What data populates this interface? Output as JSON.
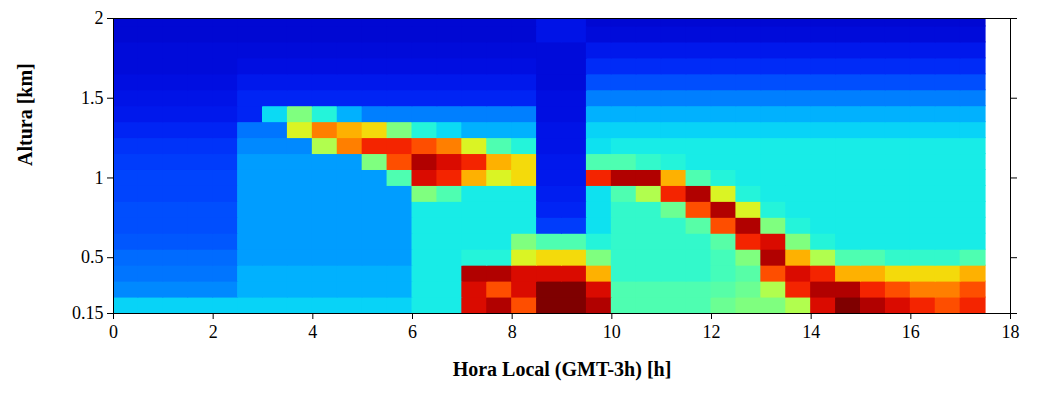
{
  "chart_data": {
    "type": "heatmap",
    "x_label": "Hora Local (GMT-3h) [h]",
    "y_label": "Altura [km]",
    "xlim": [
      0,
      18
    ],
    "xticks": [
      0,
      2,
      4,
      6,
      8,
      10,
      12,
      14,
      16,
      18
    ],
    "ylim": [
      0.15,
      2
    ],
    "yticks": [
      0.15,
      0.5,
      1,
      1.5,
      2
    ],
    "color": "jet",
    "zlim": [
      0,
      10
    ],
    "x_edges": [
      0,
      0.5,
      1,
      1.5,
      2,
      2.5,
      3,
      3.5,
      4,
      4.5,
      5,
      5.5,
      6,
      6.5,
      7,
      7.5,
      8,
      8.5,
      9,
      9.5,
      10,
      10.5,
      11,
      11.5,
      12,
      12.5,
      13,
      13.5,
      14,
      14.5,
      15,
      15.5,
      16,
      16.5,
      17,
      17.5
    ],
    "y_edges": [
      0.15,
      0.25,
      0.35,
      0.45,
      0.55,
      0.65,
      0.75,
      0.85,
      0.95,
      1.05,
      1.15,
      1.25,
      1.35,
      1.45,
      1.55,
      1.65,
      1.75,
      1.85,
      1.95,
      2.0
    ],
    "z": [
      [
        3.4,
        3.4,
        3.4,
        3.4,
        3.4,
        3.4,
        3.4,
        3.4,
        3.4,
        3.4,
        3.4,
        3.4,
        3.8,
        3.8,
        9,
        9.5,
        8,
        10,
        10,
        9.5,
        4.5,
        4.5,
        4.5,
        4.5,
        4.8,
        5,
        5,
        5.5,
        9,
        10,
        9.5,
        9,
        8.5,
        8,
        8.5
      ],
      [
        2.6,
        2.6,
        2.6,
        2.6,
        2.6,
        3,
        3,
        3,
        3,
        3,
        3,
        3,
        3.8,
        3.8,
        9,
        8,
        9,
        10,
        10,
        9,
        4.5,
        4.5,
        4.5,
        4.5,
        4.6,
        4.8,
        5.5,
        8.5,
        9.5,
        9.5,
        8.5,
        8,
        7.5,
        7.5,
        8
      ],
      [
        2.4,
        2.4,
        2.4,
        2.4,
        2.4,
        3,
        3,
        3,
        3,
        3,
        3,
        3,
        3.8,
        3.8,
        9.5,
        9.5,
        9,
        9,
        9,
        7,
        4.2,
        4.2,
        4.2,
        4.2,
        4.4,
        4.6,
        8,
        9,
        8.5,
        7,
        7,
        6.5,
        6.5,
        6.5,
        7
      ],
      [
        2.3,
        2.3,
        2.3,
        2.3,
        2.3,
        2.8,
        2.8,
        2.8,
        2.8,
        2.8,
        2.8,
        2.8,
        3.8,
        3.8,
        4,
        4,
        6,
        6.5,
        6.5,
        5,
        4.2,
        4.2,
        4.2,
        4.2,
        4.4,
        5,
        9.5,
        7,
        5.5,
        4.5,
        4.5,
        4.2,
        4.2,
        4.2,
        4.5
      ],
      [
        2.1,
        2.1,
        2.1,
        2.1,
        2.1,
        2.8,
        2.8,
        2.8,
        2.8,
        2.8,
        2.8,
        2.8,
        3.8,
        3.8,
        3.8,
        3.8,
        5,
        4.5,
        4.5,
        4,
        4.2,
        4.2,
        4.2,
        4.2,
        4.6,
        8.5,
        9,
        5,
        4,
        3.8,
        3.8,
        3.8,
        3.8,
        3.8,
        3.8
      ],
      [
        2,
        2,
        2,
        2,
        2,
        2.8,
        2.8,
        2.8,
        2.8,
        2.8,
        2.8,
        2.8,
        3.8,
        3.8,
        3.8,
        3.8,
        3.8,
        1.8,
        1.8,
        3.6,
        4.2,
        4.2,
        4.2,
        4.6,
        8,
        9.5,
        5,
        4,
        3.8,
        3.8,
        3.8,
        3.8,
        3.8,
        3.8,
        3.8
      ],
      [
        2,
        2,
        2,
        2,
        2,
        2.8,
        2.8,
        2.8,
        2.8,
        2.8,
        2.8,
        2.8,
        3.8,
        3.8,
        3.8,
        3.8,
        3.8,
        1.5,
        1.5,
        3.6,
        4.2,
        4.2,
        4.8,
        8,
        9.5,
        6,
        4,
        3.8,
        3.8,
        3.8,
        3.8,
        3.8,
        3.8,
        3.8,
        3.8
      ],
      [
        1.9,
        1.9,
        1.9,
        1.9,
        1.9,
        2.8,
        2.8,
        2.8,
        2.8,
        2.8,
        2.8,
        2.8,
        5,
        4.5,
        3.8,
        3.8,
        3.8,
        1.4,
        1.4,
        3.6,
        4.5,
        5.5,
        8.5,
        9.5,
        6,
        4,
        3.8,
        3.8,
        3.8,
        3.8,
        3.8,
        3.8,
        3.8,
        3.8,
        3.8
      ],
      [
        1.9,
        1.9,
        1.9,
        1.9,
        1.9,
        2.8,
        2.8,
        2.8,
        2.8,
        2.8,
        2.8,
        4.5,
        9,
        8.5,
        7,
        6,
        6.5,
        1.3,
        1.3,
        8.5,
        9.5,
        9.5,
        7,
        4.5,
        4,
        3.8,
        3.8,
        3.8,
        3.8,
        3.8,
        3.8,
        3.8,
        3.8,
        3.8,
        3.8
      ],
      [
        1.8,
        1.8,
        1.8,
        1.8,
        1.8,
        2.8,
        2.8,
        2.8,
        2.8,
        2.8,
        5,
        8,
        9.5,
        9,
        8.5,
        7,
        6.5,
        1.3,
        1.3,
        4.5,
        4.5,
        4.2,
        4,
        3.8,
        3.8,
        3.8,
        3.8,
        3.8,
        3.8,
        3.8,
        3.8,
        3.8,
        3.8,
        3.8,
        3.8
      ],
      [
        1.7,
        1.7,
        1.7,
        1.7,
        1.7,
        2.6,
        2.6,
        2.6,
        5.5,
        7.5,
        8.5,
        8.5,
        8,
        7.5,
        6,
        4.5,
        4,
        1.2,
        1.2,
        3.6,
        3.8,
        3.8,
        3.8,
        3.8,
        3.8,
        3.8,
        3.8,
        3.8,
        3.8,
        3.8,
        3.8,
        3.8,
        3.8,
        3.8,
        3.8
      ],
      [
        1.5,
        1.5,
        1.5,
        1.5,
        1.5,
        2.4,
        2.4,
        6,
        7.5,
        7,
        6.5,
        5,
        4,
        3.5,
        3,
        3,
        3,
        1.2,
        1.2,
        3.4,
        3.4,
        3.4,
        3.4,
        3.4,
        3.4,
        3.4,
        3.4,
        3.4,
        3.4,
        3.4,
        3.4,
        3.4,
        3.4,
        3.4,
        3.4
      ],
      [
        1.3,
        1.3,
        1.3,
        1.3,
        1.3,
        1.5,
        3.5,
        5,
        4,
        3,
        2.5,
        2.5,
        2.5,
        2.5,
        2.5,
        2.5,
        2.5,
        1.1,
        1.1,
        3,
        3,
        3,
        3,
        3,
        3,
        3,
        3,
        3,
        3,
        3,
        3,
        3,
        3,
        3,
        3
      ],
      [
        1.2,
        1.2,
        1.2,
        1.2,
        1.2,
        1.5,
        1.5,
        1.5,
        1.5,
        1.5,
        1.5,
        1.5,
        1.5,
        1.5,
        1.5,
        1.5,
        1.5,
        1.1,
        1.1,
        2.5,
        2.5,
        2.5,
        2.5,
        2.5,
        2.5,
        2.5,
        2.5,
        2.5,
        2.5,
        2.5,
        2.5,
        2.5,
        2.5,
        2.5,
        2.5
      ],
      [
        1.1,
        1.1,
        1.1,
        1.1,
        1.1,
        1.3,
        1.3,
        1.3,
        1.3,
        1.3,
        1.3,
        1.3,
        1.3,
        1.3,
        1.3,
        1.3,
        1.3,
        1,
        1,
        2,
        2,
        2,
        2,
        2,
        2,
        2,
        2,
        2,
        2,
        2,
        2,
        2,
        2,
        2,
        2
      ],
      [
        1,
        1,
        1,
        1,
        1,
        1.1,
        1.1,
        1.1,
        1.1,
        1.1,
        1.1,
        1.1,
        1.1,
        1.1,
        1.1,
        1.1,
        1.1,
        1,
        1,
        1.6,
        1.6,
        1.6,
        1.6,
        1.6,
        1.6,
        1.6,
        1.6,
        1.6,
        1.6,
        1.6,
        1.6,
        1.6,
        1.6,
        1.6,
        1.6
      ],
      [
        1,
        1,
        1,
        1,
        1,
        1,
        1,
        1,
        1,
        1,
        1,
        1,
        1,
        1,
        1,
        1,
        1,
        1,
        1,
        1.3,
        1.3,
        1.3,
        1.3,
        1.3,
        1.3,
        1.3,
        1.3,
        1.3,
        1.3,
        1.3,
        1.3,
        1.3,
        1.3,
        1.3,
        1.3
      ],
      [
        0.9,
        0.9,
        0.9,
        0.9,
        0.9,
        0.9,
        0.9,
        0.9,
        0.9,
        0.9,
        0.9,
        0.9,
        0.9,
        0.9,
        0.9,
        0.9,
        0.9,
        1.2,
        1.2,
        1,
        1,
        1,
        1,
        1,
        1,
        1,
        1,
        1,
        1,
        1,
        1,
        1,
        1,
        1,
        1
      ],
      [
        0.9,
        0.9,
        0.9,
        0.9,
        0.9,
        0.9,
        0.9,
        0.9,
        0.9,
        0.9,
        0.9,
        0.9,
        0.9,
        0.9,
        0.9,
        0.9,
        0.9,
        1.2,
        1.2,
        0.9,
        0.9,
        0.9,
        0.9,
        0.9,
        0.9,
        0.9,
        0.9,
        0.9,
        0.9,
        0.9,
        0.9,
        0.9,
        0.9,
        0.9,
        0.9
      ]
    ]
  }
}
